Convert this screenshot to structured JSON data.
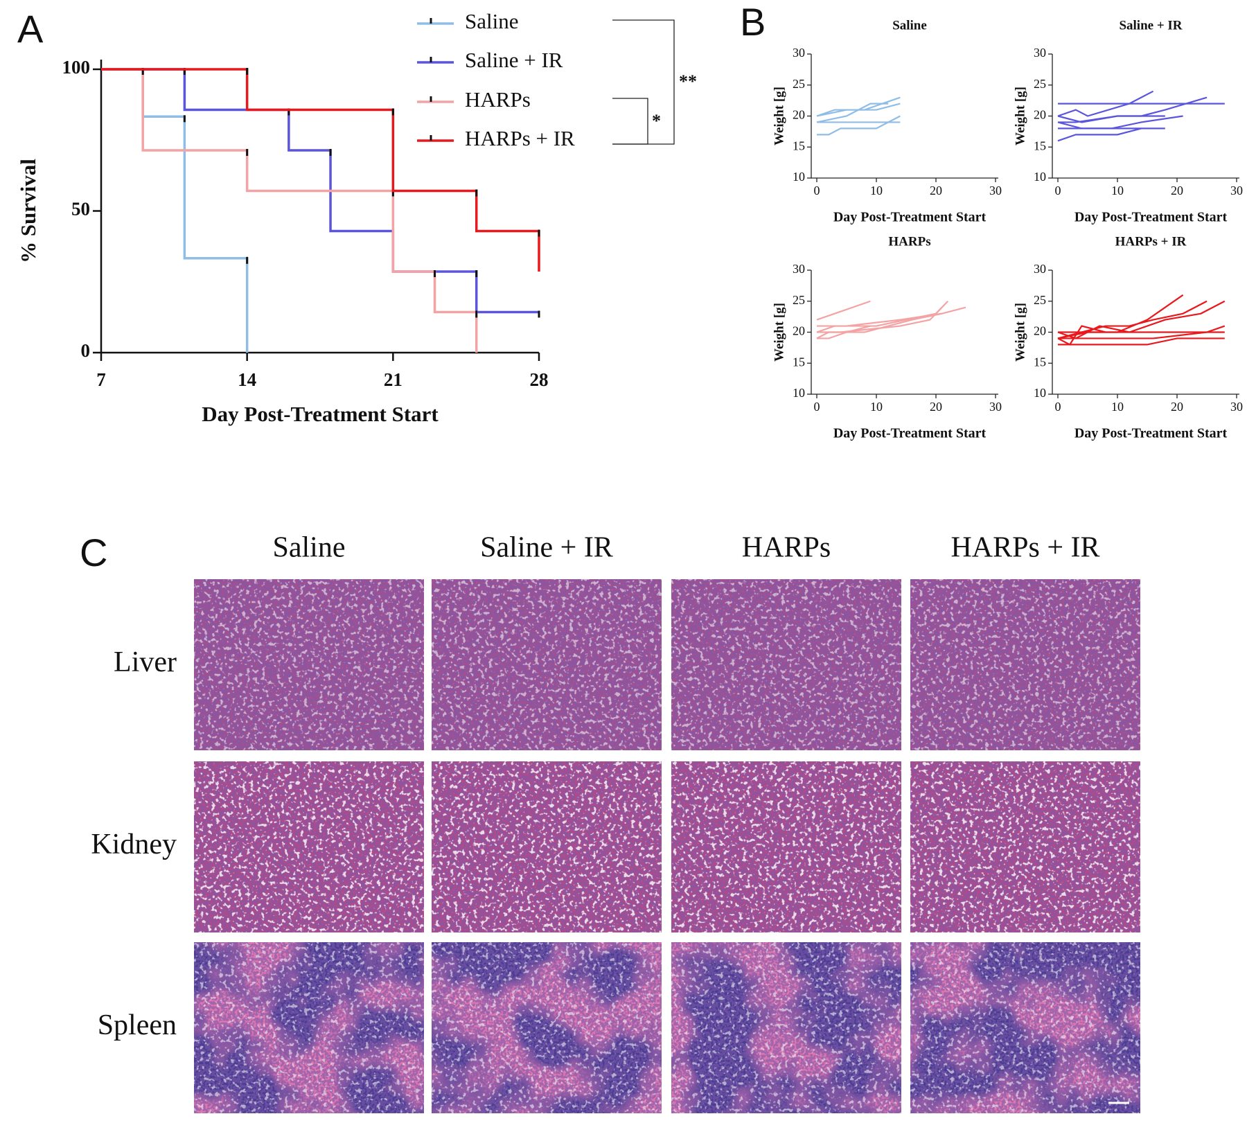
{
  "panels": [
    "A",
    "B",
    "C"
  ],
  "chart_data": [
    {
      "type": "step",
      "xlabel": "Day Post-Treatment Start",
      "ylabel": "% Survival",
      "xlim": [
        7,
        28
      ],
      "xticks": [
        7,
        14,
        21,
        28
      ],
      "ylim": [
        0,
        100
      ],
      "yticks": [
        0,
        50,
        100
      ],
      "annotations": [
        "**",
        "*"
      ],
      "series": [
        {
          "name": "Saline",
          "color": "#8fbde6",
          "x": [
            7,
            9,
            11,
            14
          ],
          "values": [
            100,
            83.3,
            33.3,
            0
          ]
        },
        {
          "name": "Saline + IR",
          "color": "#5a55dc",
          "x": [
            7,
            11,
            16,
            18,
            21,
            25,
            28
          ],
          "values": [
            100,
            85.7,
            71.4,
            42.9,
            28.6,
            14.3,
            14.3
          ]
        },
        {
          "name": "HARPs",
          "color": "#f3a3a3",
          "x": [
            7,
            9,
            14,
            21,
            23,
            25
          ],
          "values": [
            100,
            71.4,
            57.1,
            28.6,
            14.3,
            0
          ]
        },
        {
          "name": "HARPs + IR",
          "color": "#e8181c",
          "x": [
            7,
            14,
            21,
            25,
            28
          ],
          "values": [
            100,
            85.7,
            57.1,
            42.9,
            28.6
          ]
        }
      ]
    },
    {
      "type": "line",
      "title": "Saline",
      "xlabel": "Day Post-Treatment Start",
      "ylabel": "Weight [g]",
      "xlim": [
        0,
        30
      ],
      "xticks": [
        0,
        10,
        20,
        30
      ],
      "ylim": [
        10,
        30
      ],
      "yticks": [
        10,
        15,
        20,
        25,
        30
      ],
      "color": "#8fbde6",
      "series": [
        {
          "x": [
            0,
            3,
            8,
            14
          ],
          "values": [
            20,
            21,
            21,
            23
          ]
        },
        {
          "x": [
            0,
            5,
            9,
            12
          ],
          "values": [
            19,
            20,
            22,
            22
          ]
        },
        {
          "x": [
            0,
            4,
            14
          ],
          "values": [
            19,
            19,
            19
          ]
        },
        {
          "x": [
            0,
            2,
            4,
            10,
            14
          ],
          "values": [
            17,
            17,
            18,
            18,
            20
          ]
        },
        {
          "x": [
            0,
            5,
            10,
            14
          ],
          "values": [
            20,
            21,
            21,
            22
          ]
        }
      ]
    },
    {
      "type": "line",
      "title": "Saline + IR",
      "xlabel": "Day Post-Treatment Start",
      "ylabel": "Weight [g]",
      "xlim": [
        0,
        30
      ],
      "xticks": [
        0,
        10,
        20,
        30
      ],
      "ylim": [
        10,
        30
      ],
      "yticks": [
        10,
        15,
        20,
        25,
        30
      ],
      "color": "#5a55dc",
      "series": [
        {
          "x": [
            0,
            5,
            10,
            15,
            20,
            28
          ],
          "values": [
            22,
            22,
            22,
            22,
            22,
            22
          ]
        },
        {
          "x": [
            0,
            3,
            5,
            12,
            14,
            16
          ],
          "values": [
            20,
            21,
            20,
            22,
            23,
            24
          ]
        },
        {
          "x": [
            0,
            4,
            10,
            18
          ],
          "values": [
            20,
            19,
            20,
            20
          ]
        },
        {
          "x": [
            0,
            3,
            10,
            14,
            18,
            25
          ],
          "values": [
            19,
            19,
            20,
            20,
            21,
            23
          ]
        },
        {
          "x": [
            0,
            2,
            9,
            14,
            21
          ],
          "values": [
            18,
            18,
            18,
            19,
            20
          ]
        },
        {
          "x": [
            0,
            4,
            10,
            18
          ],
          "values": [
            19,
            18,
            18,
            18
          ]
        },
        {
          "x": [
            0,
            3,
            10,
            14
          ],
          "values": [
            16,
            17,
            17,
            18
          ]
        }
      ]
    },
    {
      "type": "line",
      "title": "HARPs",
      "xlabel": "Day Post-Treatment Start",
      "ylabel": "Weight [g]",
      "xlim": [
        0,
        30
      ],
      "xticks": [
        0,
        10,
        20,
        30
      ],
      "ylim": [
        10,
        30
      ],
      "yticks": [
        10,
        15,
        20,
        25,
        30
      ],
      "color": "#f3a3a3",
      "series": [
        {
          "x": [
            0,
            3,
            9
          ],
          "values": [
            22,
            23,
            25
          ]
        },
        {
          "x": [
            0,
            5,
            14,
            21,
            25
          ],
          "values": [
            21,
            21,
            22,
            23,
            24
          ]
        },
        {
          "x": [
            0,
            3,
            10,
            15,
            20,
            22
          ],
          "values": [
            20,
            21,
            21,
            22,
            23,
            25
          ]
        },
        {
          "x": [
            0,
            2,
            8,
            16,
            21
          ],
          "values": [
            19,
            20,
            20,
            22,
            23
          ]
        },
        {
          "x": [
            0,
            2,
            5,
            9
          ],
          "values": [
            19,
            19,
            20,
            21
          ]
        },
        {
          "x": [
            0,
            4,
            14,
            19,
            21
          ],
          "values": [
            20,
            20,
            21,
            22,
            24
          ]
        }
      ]
    },
    {
      "type": "line",
      "title": "HARPs + IR",
      "xlabel": "Day Post-Treatment Start",
      "ylabel": "Weight [g]",
      "xlim": [
        0,
        30
      ],
      "xticks": [
        0,
        10,
        20,
        30
      ],
      "ylim": [
        10,
        30
      ],
      "yticks": [
        10,
        15,
        20,
        25,
        30
      ],
      "color": "#e8181c",
      "series": [
        {
          "x": [
            0,
            5,
            10,
            15,
            18,
            21
          ],
          "values": [
            19,
            20,
            20,
            22,
            24,
            26
          ]
        },
        {
          "x": [
            0,
            4,
            8,
            12,
            16,
            21,
            25
          ],
          "values": [
            19,
            20,
            21,
            21,
            22,
            23,
            25
          ]
        },
        {
          "x": [
            0,
            3,
            7,
            12,
            18,
            24,
            28
          ],
          "values": [
            20,
            19,
            21,
            20,
            22,
            23,
            25
          ]
        },
        {
          "x": [
            0,
            10,
            20,
            28
          ],
          "values": [
            20,
            20,
            20,
            20
          ]
        },
        {
          "x": [
            0,
            8,
            16,
            25,
            28
          ],
          "values": [
            19,
            19,
            19,
            20,
            21
          ]
        },
        {
          "x": [
            0,
            5,
            15,
            20,
            28
          ],
          "values": [
            18,
            18,
            18,
            19,
            19
          ]
        },
        {
          "x": [
            0,
            2,
            4,
            8
          ],
          "values": [
            19,
            18,
            21,
            20
          ]
        }
      ]
    }
  ],
  "histology": {
    "columns": [
      "Saline",
      "Saline + IR",
      "HARPs",
      "HARPs + IR"
    ],
    "rows": [
      "Liver",
      "Kidney",
      "Spleen"
    ]
  }
}
